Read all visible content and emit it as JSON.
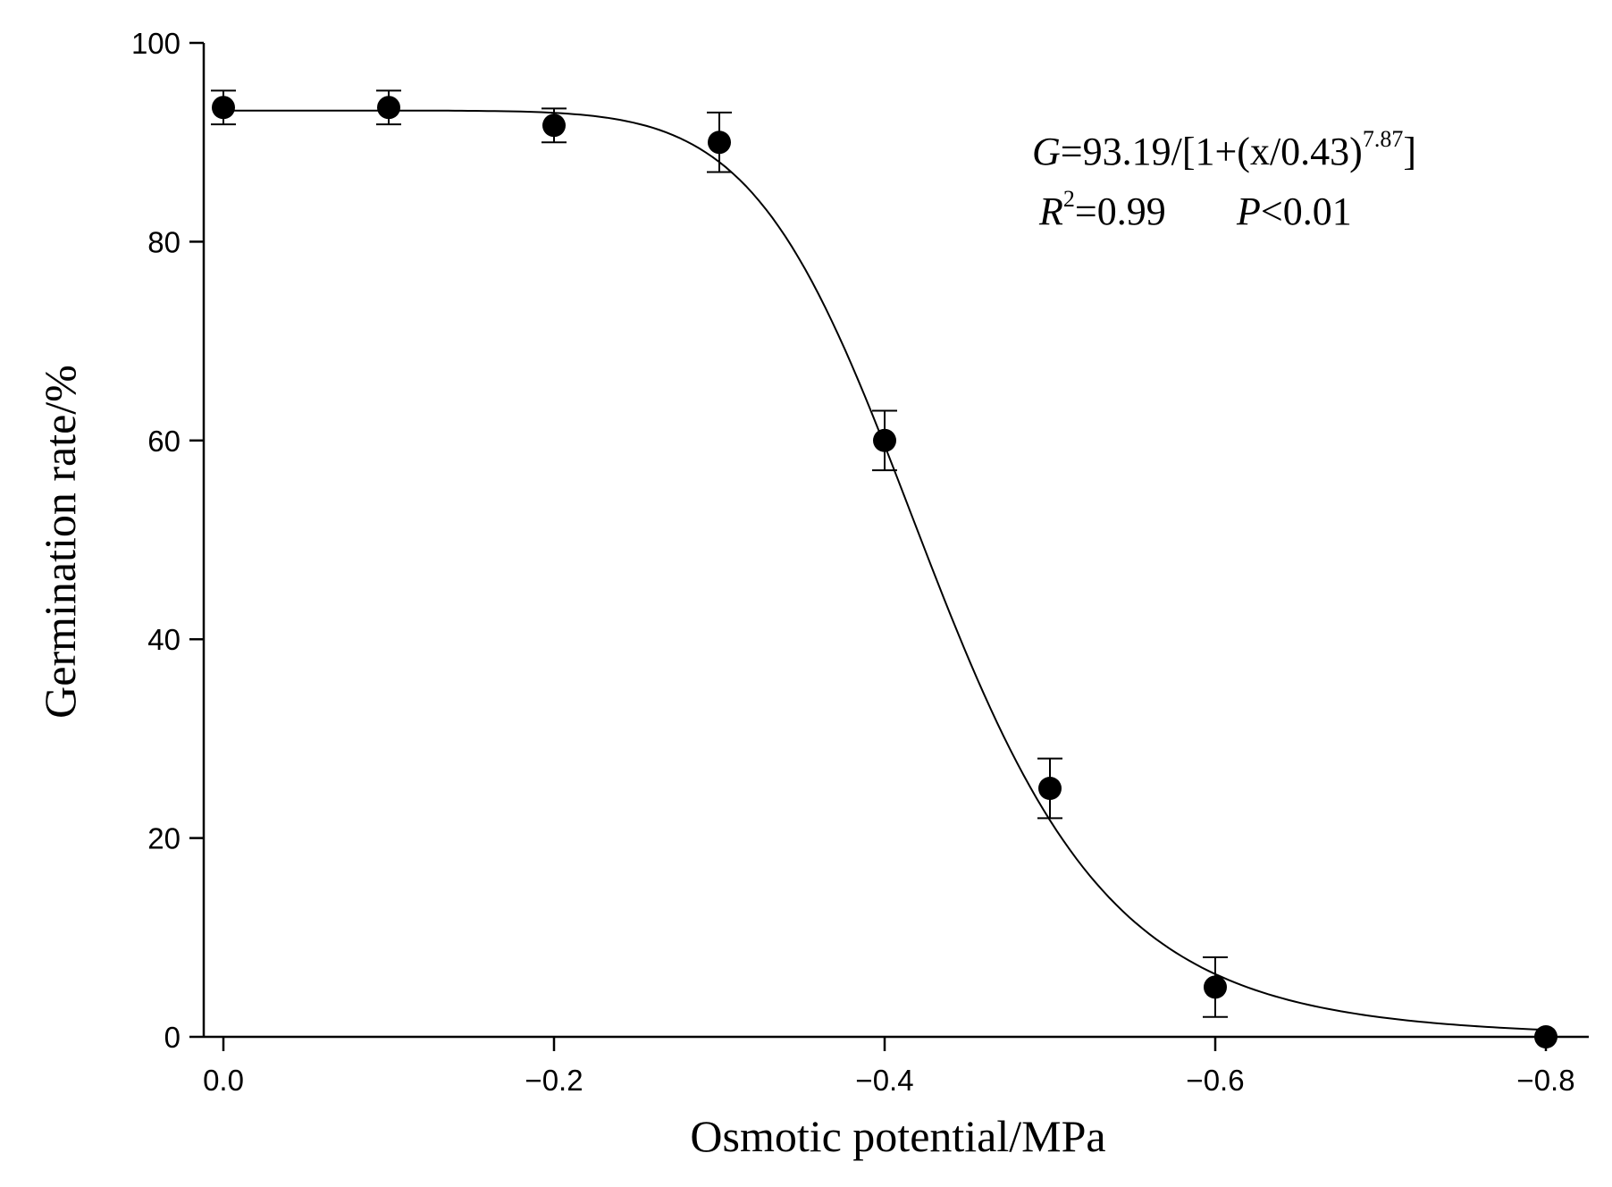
{
  "chart_data": {
    "type": "scatter",
    "title": "",
    "xlabel": "Osmotic potential/MPa",
    "ylabel": "Germination rate/%",
    "xlim": [
      0.0,
      -0.8
    ],
    "ylim": [
      0,
      100
    ],
    "x_ticks": [
      0.0,
      -0.2,
      -0.4,
      -0.6,
      -0.8
    ],
    "x_tick_labels": [
      "0.0",
      "−0.2",
      "−0.4",
      "−0.6",
      "−0.8"
    ],
    "y_ticks": [
      0,
      20,
      40,
      60,
      80,
      100
    ],
    "y_tick_labels": [
      "0",
      "20",
      "40",
      "60",
      "80",
      "100"
    ],
    "grid": false,
    "series": [
      {
        "name": "Germination rate",
        "x": [
          0.0,
          -0.1,
          -0.2,
          -0.3,
          -0.4,
          -0.5,
          -0.6,
          -0.8
        ],
        "y": [
          93.5,
          93.5,
          91.7,
          90.0,
          60.0,
          25.0,
          5.0,
          0.0
        ],
        "error": [
          1.7,
          1.7,
          1.7,
          3.0,
          3.0,
          3.0,
          3.0,
          0.0
        ]
      }
    ],
    "fit": {
      "model": "G=a/[1+(x/b)^c]",
      "a": 93.19,
      "b": 0.43,
      "c": 7.87
    },
    "annotation": {
      "line1_var": "G",
      "line1_text": "=93.19/[1+(x/0.43)",
      "line1_exp": "7.87",
      "line1_end": "]",
      "line2_var": "R",
      "line2_sup": "2",
      "line2_text": "=0.99",
      "line2_pvar": "P",
      "line2_ptext": "<0.01"
    }
  }
}
